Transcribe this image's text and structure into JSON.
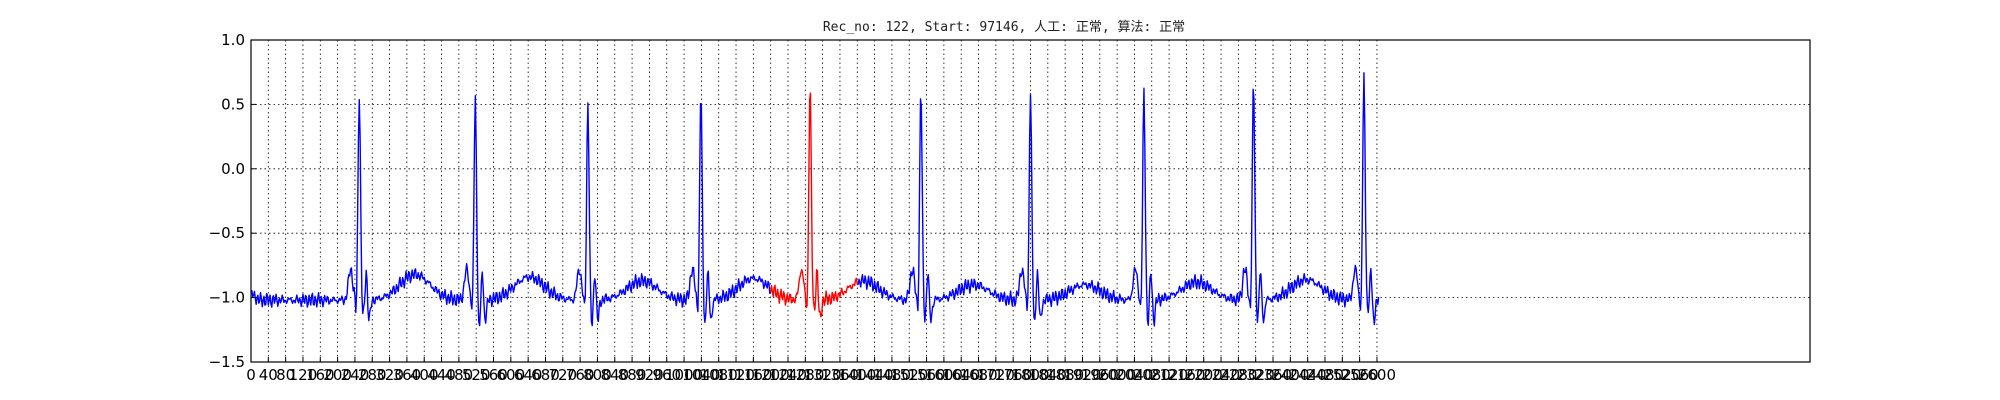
{
  "chart_data": {
    "type": "line",
    "title": "Rec_no: 122, Start: 97146, 人工: 正常, 算法: 正常",
    "xlabel": "",
    "ylabel": "",
    "xlim": [
      0,
      3600
    ],
    "ylim": [
      -1.5,
      1.0
    ],
    "grid": true,
    "grid_style": "dotted",
    "x_ticks": [
      0,
      40,
      80,
      120,
      160,
      200,
      240,
      280,
      320,
      360,
      400,
      440,
      480,
      520,
      560,
      600,
      640,
      680,
      720,
      760,
      800,
      840,
      880,
      920,
      960,
      1000,
      1040,
      1080,
      1120,
      1160,
      1200,
      1240,
      1280,
      1320,
      1360,
      1400,
      1440,
      1480,
      1520,
      1560,
      1600,
      1640,
      1680,
      1720,
      1760,
      1800,
      1840,
      1880,
      1920,
      1960,
      2000,
      2040,
      2080,
      2120,
      2160,
      2200,
      2240,
      2280,
      2320,
      2360,
      2400,
      2440,
      2480,
      2520,
      2560,
      2600
    ],
    "x_tick_labels": [
      "0",
      "40",
      "80",
      "120",
      "160",
      "200",
      "240",
      "280",
      "320",
      "360",
      "400",
      "440",
      "480",
      "520",
      "560",
      "600",
      "640",
      "680",
      "720",
      "760",
      "800",
      "840",
      "880",
      "920",
      "960",
      "1000",
      "1040",
      "1080",
      "1120",
      "1160",
      "1200",
      "1240",
      "1280",
      "1320",
      "1360",
      "1400",
      "1440",
      "1480",
      "1520",
      "1560",
      "1600",
      "1640",
      "1680",
      "1720",
      "1760",
      "1800",
      "1840",
      "1880",
      "1920",
      "1960",
      "2000",
      "2040",
      "2080",
      "2120",
      "2160",
      "2200",
      "2240",
      "2280",
      "2320",
      "2360",
      "2400",
      "2440",
      "2480",
      "2520",
      "2560",
      "2600"
    ],
    "y_ticks": [
      1.0,
      0.5,
      0.0,
      -0.5,
      -1.0,
      -1.5
    ],
    "y_tick_labels": [
      "1.0",
      "0.5",
      "0.0",
      "−0.5",
      "−1.0",
      "−1.5"
    ],
    "baseline": -1.02,
    "series": [
      {
        "color": "#0000ff",
        "x_range": [
          0,
          1200
        ]
      },
      {
        "color": "#ff0000",
        "x_range": [
          1200,
          1400
        ]
      },
      {
        "color": "#0000ff",
        "x_range": [
          1400,
          2605
        ]
      }
    ],
    "beats": [
      {
        "r_x": 250,
        "r_peak": 0.7,
        "s_min": -1.25,
        "t_amp": 0.2
      },
      {
        "r_x": 518,
        "r_peak": 0.66,
        "s_min": -1.33,
        "t_amp": 0.18
      },
      {
        "r_x": 778,
        "r_peak": 0.62,
        "s_min": -1.31,
        "t_amp": 0.15
      },
      {
        "r_x": 1039,
        "r_peak": 0.71,
        "s_min": -1.29,
        "t_amp": 0.17
      },
      {
        "r_x": 1291,
        "r_peak": 0.76,
        "s_min": -1.2,
        "t_amp": 0.15
      },
      {
        "r_x": 1547,
        "r_peak": 0.72,
        "s_min": -1.25,
        "t_amp": 0.12
      },
      {
        "r_x": 1800,
        "r_peak": 0.7,
        "s_min": -1.29,
        "t_amp": 0.12
      },
      {
        "r_x": 2062,
        "r_peak": 0.7,
        "s_min": -1.29,
        "t_amp": 0.14
      },
      {
        "r_x": 2315,
        "r_peak": 0.78,
        "s_min": -1.26,
        "t_amp": 0.16
      },
      {
        "r_x": 2570,
        "r_peak": 0.82,
        "s_min": -1.2,
        "t_amp": 0.18
      }
    ]
  }
}
